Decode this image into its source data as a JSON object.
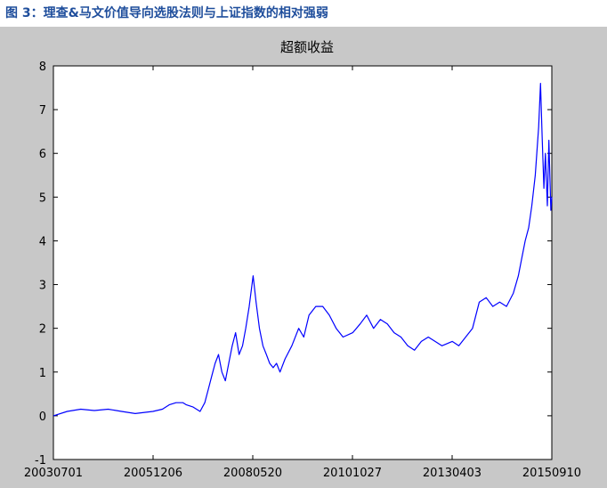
{
  "caption": "图 3：理查&马文价值导向选股法则与上证指数的相对强弱",
  "colors": {
    "caption": "#1f4e9c",
    "line": "#0000ff",
    "frame": "#c8c8c8",
    "plot_bg": "#ffffff"
  },
  "chart_data": {
    "type": "line",
    "title": "超额收益",
    "xlabel": "",
    "ylabel": "",
    "x_tick_labels": [
      "20030701",
      "20051206",
      "20080520",
      "20101027",
      "20130403",
      "20150910"
    ],
    "x_range": [
      "20030701",
      "20150910"
    ],
    "ylim": [
      -1,
      8
    ],
    "y_ticks": [
      -1,
      0,
      1,
      2,
      3,
      4,
      5,
      6,
      7,
      8
    ],
    "y_tick_labels": [
      "-1",
      "0",
      "1",
      "2",
      "3",
      "4",
      "5",
      "6",
      "7",
      "8"
    ],
    "grid": false,
    "series": [
      {
        "name": "",
        "x": [
          "2003-07-01",
          "2003-11-01",
          "2004-03-01",
          "2004-07-01",
          "2004-11-01",
          "2005-03-01",
          "2005-07-01",
          "2005-12-06",
          "2006-03-01",
          "2006-05-01",
          "2006-07-01",
          "2006-09-01",
          "2006-10-01",
          "2006-12-01",
          "2007-02-01",
          "2007-03-15",
          "2007-04-15",
          "2007-05-15",
          "2007-06-15",
          "2007-07-15",
          "2007-08-15",
          "2007-09-15",
          "2007-10-15",
          "2007-11-15",
          "2007-12-15",
          "2008-01-15",
          "2008-02-15",
          "2008-03-15",
          "2008-04-15",
          "2008-05-20",
          "2008-06-15",
          "2008-07-15",
          "2008-08-15",
          "2008-09-15",
          "2008-10-15",
          "2008-11-15",
          "2008-12-15",
          "2009-01-15",
          "2009-03-01",
          "2009-05-01",
          "2009-07-01",
          "2009-08-15",
          "2009-10-01",
          "2009-12-01",
          "2010-02-01",
          "2010-04-01",
          "2010-06-01",
          "2010-08-01",
          "2010-10-27",
          "2011-01-01",
          "2011-03-01",
          "2011-05-01",
          "2011-07-01",
          "2011-09-01",
          "2011-11-01",
          "2012-01-01",
          "2012-03-01",
          "2012-05-01",
          "2012-07-01",
          "2012-09-01",
          "2012-11-01",
          "2013-01-01",
          "2013-04-03",
          "2013-06-01",
          "2013-08-01",
          "2013-10-01",
          "2013-12-01",
          "2014-02-01",
          "2014-04-01",
          "2014-06-01",
          "2014-08-01",
          "2014-10-01",
          "2014-11-15",
          "2014-12-15",
          "2015-01-15",
          "2015-02-15",
          "2015-03-15",
          "2015-04-15",
          "2015-05-15",
          "2015-06-01",
          "2015-06-15",
          "2015-07-01",
          "2015-07-15",
          "2015-08-01",
          "2015-08-15",
          "2015-09-01",
          "2015-09-10"
        ],
        "y": [
          0.0,
          0.1,
          0.15,
          0.12,
          0.15,
          0.1,
          0.05,
          0.1,
          0.15,
          0.25,
          0.3,
          0.3,
          0.25,
          0.2,
          0.1,
          0.3,
          0.6,
          0.9,
          1.2,
          1.4,
          1.0,
          0.8,
          1.2,
          1.6,
          1.9,
          1.4,
          1.6,
          2.0,
          2.5,
          3.2,
          2.6,
          2.0,
          1.6,
          1.4,
          1.2,
          1.1,
          1.2,
          1.0,
          1.3,
          1.6,
          2.0,
          1.8,
          2.3,
          2.5,
          2.5,
          2.3,
          2.0,
          1.8,
          1.9,
          2.1,
          2.3,
          2.0,
          2.2,
          2.1,
          1.9,
          1.8,
          1.6,
          1.5,
          1.7,
          1.8,
          1.7,
          1.6,
          1.7,
          1.6,
          1.8,
          2.0,
          2.6,
          2.7,
          2.5,
          2.6,
          2.5,
          2.8,
          3.2,
          3.6,
          4.0,
          4.3,
          4.8,
          5.5,
          6.6,
          7.6,
          6.4,
          5.2,
          6.0,
          4.8,
          6.3,
          4.7,
          5.0
        ]
      }
    ]
  }
}
